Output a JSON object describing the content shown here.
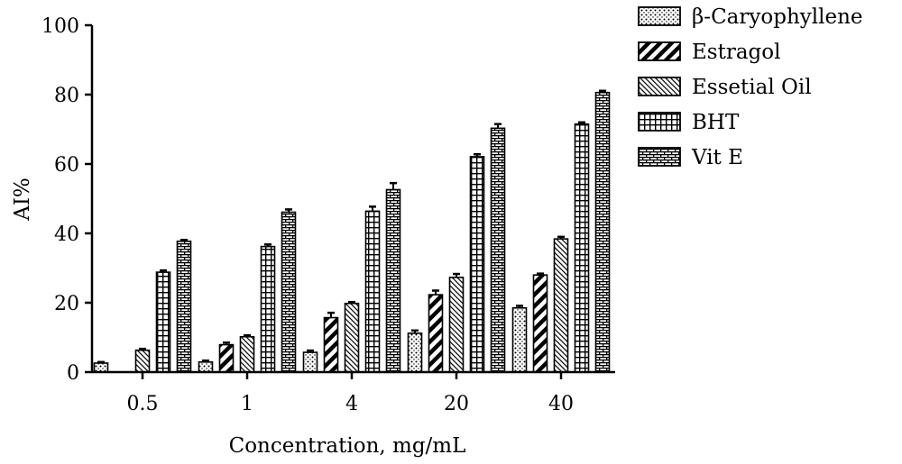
{
  "chart_data": {
    "type": "bar",
    "xlabel": "Concentration, mg/mL",
    "ylabel": "AI%",
    "ylim": [
      0,
      100
    ],
    "yticks": [
      "0",
      "20",
      "40",
      "60",
      "80",
      "100"
    ],
    "categories": [
      "0.5",
      "1",
      "4",
      "20",
      "40"
    ],
    "series": [
      {
        "name": "β-Caryophyllene",
        "pattern": "dots",
        "values": [
          2.6,
          2.9,
          5.7,
          11.2,
          18.5
        ],
        "errors": [
          0.3,
          0.4,
          0.5,
          0.8,
          0.6
        ]
      },
      {
        "name": "Estragol",
        "pattern": "thick-diagonal",
        "values": [
          0,
          7.9,
          15.7,
          22.3,
          28.0
        ],
        "errors": [
          0,
          0.6,
          1.4,
          1.2,
          0.4
        ]
      },
      {
        "name": "Essetial Oil",
        "pattern": "thin-diagonal",
        "values": [
          6.3,
          10.2,
          19.8,
          27.3,
          38.4
        ],
        "errors": [
          0.4,
          0.4,
          0.4,
          1.0,
          0.6
        ]
      },
      {
        "name": "BHT",
        "pattern": "grid",
        "values": [
          28.8,
          36.2,
          46.4,
          62.1,
          71.5
        ],
        "errors": [
          0.5,
          0.6,
          1.3,
          0.7,
          0.5
        ]
      },
      {
        "name": "Vit E",
        "pattern": "brick",
        "values": [
          37.7,
          46.1,
          52.6,
          70.3,
          80.6
        ],
        "errors": [
          0.4,
          0.8,
          1.9,
          1.2,
          0.5
        ]
      }
    ],
    "legend_position": "top-right",
    "grid": false
  }
}
